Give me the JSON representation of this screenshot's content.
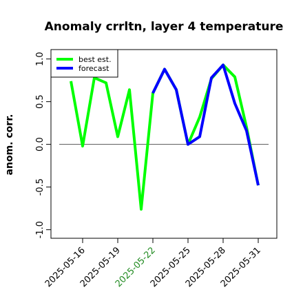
{
  "chart_data": {
    "type": "line",
    "title": "Anomaly crrltn, layer 4 temperature",
    "y_label": "anom. corr.",
    "categories": [
      null,
      "2025-05-16",
      null,
      null,
      "2025-05-19",
      null,
      null,
      "2025-05-22",
      null,
      null,
      "2025-05-25",
      null,
      null,
      "2025-05-28",
      null,
      null,
      "2025-05-31"
    ],
    "xtick_label_colors": [
      null,
      "#000000",
      null,
      null,
      "#000000",
      null,
      null,
      "#228b22",
      null,
      null,
      "#000000",
      null,
      null,
      "#000000",
      null,
      null,
      "#000000"
    ],
    "series": [
      {
        "name": "best est.",
        "color": "#00ff00",
        "values": [
          0.74,
          -0.02,
          0.78,
          0.72,
          0.09,
          0.64,
          -0.76,
          0.6,
          0.88,
          0.64,
          0.0,
          0.32,
          0.77,
          0.93,
          0.79,
          0.2,
          -0.48
        ]
      },
      {
        "name": "forecast",
        "color": "#0000ff",
        "values": [
          null,
          null,
          null,
          null,
          null,
          null,
          null,
          0.6,
          0.88,
          0.64,
          0.0,
          0.09,
          0.78,
          0.93,
          0.48,
          0.16,
          -0.48
        ]
      }
    ],
    "ylim": [
      -1.1,
      1.11
    ],
    "yticks": [
      {
        "value": -1,
        "label": "-1.0"
      },
      {
        "value": -0.5,
        "label": "-0.5"
      },
      {
        "value": 0,
        "label": "0.0"
      },
      {
        "value": 0.5,
        "label": "0.5"
      },
      {
        "value": 1,
        "label": "1.0"
      }
    ],
    "reference_line": 0,
    "legend": "upper left"
  }
}
